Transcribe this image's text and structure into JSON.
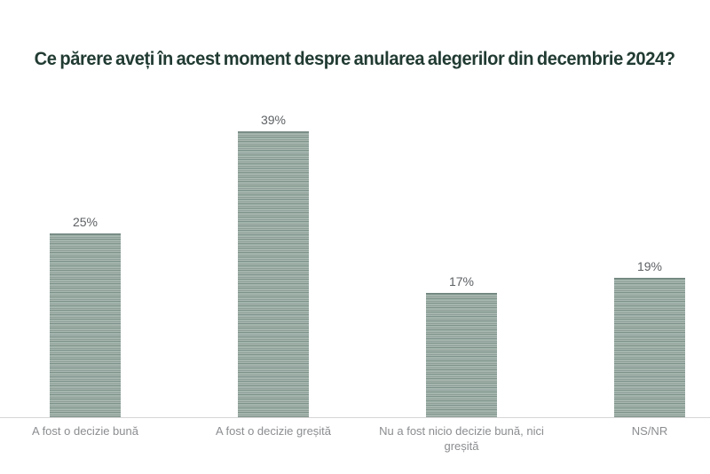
{
  "page": {
    "background": "#ffffff"
  },
  "header": {
    "title": "Ce părere aveți în acest moment despre anularea alegerilor din decembrie 2024?",
    "title_color": "#213b33"
  },
  "chart_data": {
    "type": "bar",
    "title": "Ce părere aveți în acest moment despre anularea alegerilor din decembrie 2024?",
    "categories": [
      "A fost o decizie bună",
      "A fost o decizie greșită",
      "Nu a fost nicio decizie bună, nici greșită",
      "NS/NR"
    ],
    "values": [
      25,
      39,
      17,
      19
    ],
    "value_labels": [
      "25%",
      "39%",
      "17%",
      "19%"
    ],
    "xlabel": "",
    "ylabel": "",
    "ylim": [
      0,
      45
    ],
    "grid": false,
    "legend": false,
    "bar_color": "#8d9f98",
    "bar_stripe_light": "#c3d0ca",
    "bar_stripe_dark": "#7e938b",
    "bar_stripe_mid": "#a9b8b1",
    "bar_edge_color": "#6e837c",
    "axis_line_color": "#d6d6d6",
    "value_label_color": "#5d6164",
    "category_label_color": "#8b8d90"
  }
}
